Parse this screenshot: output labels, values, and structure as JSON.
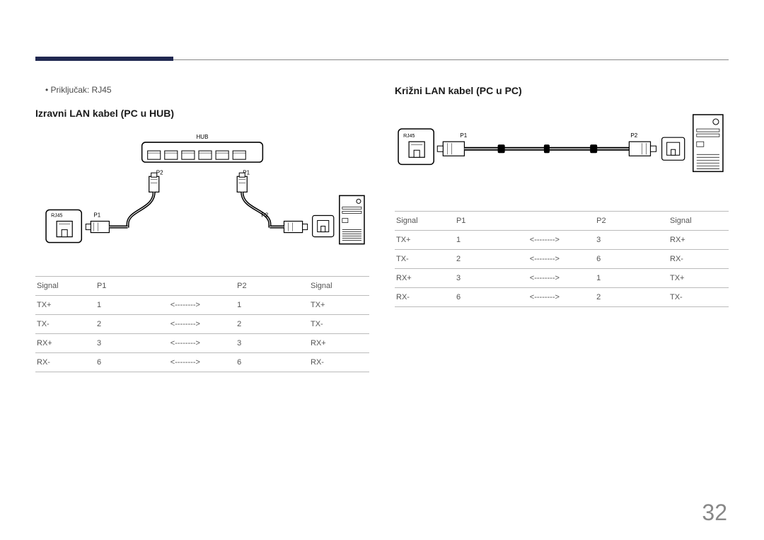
{
  "page_number": "32",
  "left": {
    "bullet": "•   Priključak: RJ45",
    "title": "Izravni LAN kabel (PC u HUB)",
    "diagram": {
      "hub_label": "HUB",
      "rj45_label": "RJ45",
      "p1_label": "P1",
      "p2_label": "P2"
    },
    "table": {
      "headers": [
        "Signal",
        "P1",
        "",
        "P2",
        "Signal"
      ],
      "rows": [
        [
          "TX+",
          "1",
          "<-------->",
          "1",
          "TX+"
        ],
        [
          "TX-",
          "2",
          "<-------->",
          "2",
          "TX-"
        ],
        [
          "RX+",
          "3",
          "<-------->",
          "3",
          "RX+"
        ],
        [
          "RX-",
          "6",
          "<-------->",
          "6",
          "RX-"
        ]
      ]
    }
  },
  "right": {
    "title": "Križni LAN kabel (PC u PC)",
    "diagram": {
      "rj45_label": "RJ45",
      "p1_label": "P1",
      "p2_label": "P2"
    },
    "table": {
      "headers": [
        "Signal",
        "P1",
        "",
        "P2",
        "Signal"
      ],
      "rows": [
        [
          "TX+",
          "1",
          "<-------->",
          "3",
          "RX+"
        ],
        [
          "TX-",
          "2",
          "<-------->",
          "6",
          "RX-"
        ],
        [
          "RX+",
          "3",
          "<-------->",
          "1",
          "TX+"
        ],
        [
          "RX-",
          "6",
          "<-------->",
          "2",
          "TX-"
        ]
      ]
    }
  },
  "colors": {
    "accent": "#202850",
    "line": "#888888",
    "text": "#4a4a4a",
    "border": "#bbbbbb"
  }
}
